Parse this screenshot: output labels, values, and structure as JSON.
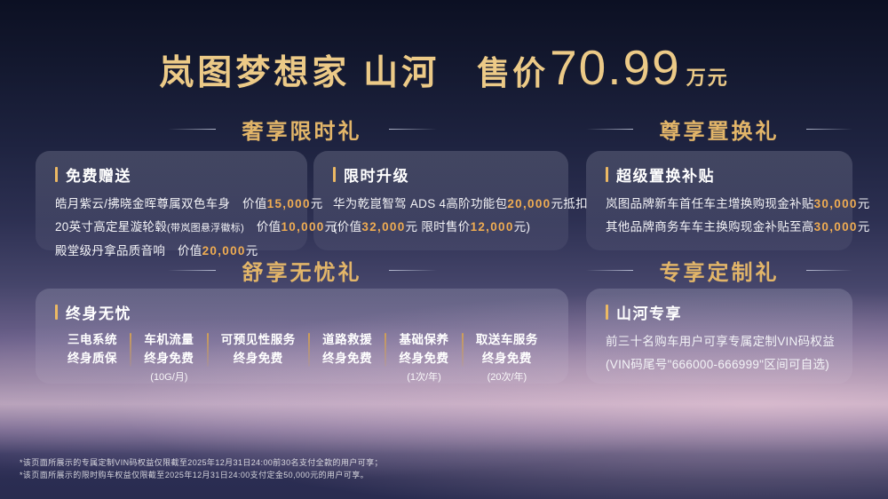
{
  "title": {
    "model": "岚图梦想家 山河",
    "price_label": "售价",
    "price_value": "70.99",
    "price_unit": "万元"
  },
  "sections": {
    "luxury": "奢享限时礼",
    "tradein": "尊享置换礼",
    "carefree": "舒享无忧礼",
    "custom": "专享定制礼"
  },
  "cards": {
    "free_gifts": {
      "heading": "免费赠送",
      "lines": [
        [
          {
            "t": "皓月紫云/拂晓金晖尊属双色车身　价值"
          },
          {
            "t": "15,000",
            "gold": true
          },
          {
            "t": "元"
          }
        ],
        [
          {
            "t": "20英寸高定星漩轮毂"
          },
          {
            "t": "(带岚图悬浮徽标)",
            "small": true
          },
          {
            "t": "　价值"
          },
          {
            "t": "10,000",
            "gold": true
          },
          {
            "t": "元"
          }
        ],
        [
          {
            "t": "殿堂级丹拿品质音响　价值"
          },
          {
            "t": "20,000",
            "gold": true
          },
          {
            "t": "元"
          }
        ]
      ]
    },
    "upgrade": {
      "heading": "限时升级",
      "lines": [
        [
          {
            "t": "华为乾崑智驾 ADS 4高阶功能包"
          },
          {
            "t": "20,000",
            "gold": true
          },
          {
            "t": "元抵扣"
          }
        ],
        [
          {
            "t": "(价值"
          },
          {
            "t": "32,000",
            "gold": true
          },
          {
            "t": "元 限时售价"
          },
          {
            "t": "12,000",
            "gold": true
          },
          {
            "t": "元)"
          }
        ]
      ]
    },
    "subsidy": {
      "heading": "超级置换补贴",
      "lines": [
        [
          {
            "t": "岚图品牌新车首任车主增换购现金补贴"
          },
          {
            "t": "30,000",
            "gold": true
          },
          {
            "t": "元"
          }
        ],
        [
          {
            "t": "其他品牌商务车车主换购现金补贴至高"
          },
          {
            "t": "30,000",
            "gold": true
          },
          {
            "t": "元"
          }
        ]
      ]
    },
    "lifetime": {
      "heading": "终身无忧",
      "benefits": [
        {
          "line1": "三电系统",
          "line2": "终身质保",
          "note": ""
        },
        {
          "line1": "车机流量",
          "line2": "终身免费",
          "note": "(10G/月)"
        },
        {
          "line1": "可预见性服务",
          "line2": "终身免费",
          "note": ""
        },
        {
          "line1": "道路救援",
          "line2": "终身免费",
          "note": ""
        },
        {
          "line1": "基础保养",
          "line2": "终身免费",
          "note": "(1次/年)"
        },
        {
          "line1": "取送车服务",
          "line2": "终身免费",
          "note": "(20次/年)"
        }
      ]
    },
    "exclusive": {
      "heading": "山河专享",
      "lines": [
        [
          {
            "t": "前三十名购车用户可享专属定制VIN码权益"
          }
        ],
        [
          {
            "t": "(VIN码尾号\"666000-666999\"区间可自选)"
          }
        ]
      ]
    }
  },
  "footnotes": [
    "*该页面所展示的专属定制VIN码权益仅限截至2025年12月31日24:00前30名支付全款的用户可享；",
    "*该页面所展示的限时购车权益仅限截至2025年12月31日24:00支付定金50,000元的用户可享。"
  ],
  "colors": {
    "title_gold": "#ecca87",
    "header_gold": "#e2b569",
    "number_gold": "#efac52",
    "background_navy": "#0c1023",
    "mist_pink": "#b7a1b7"
  }
}
